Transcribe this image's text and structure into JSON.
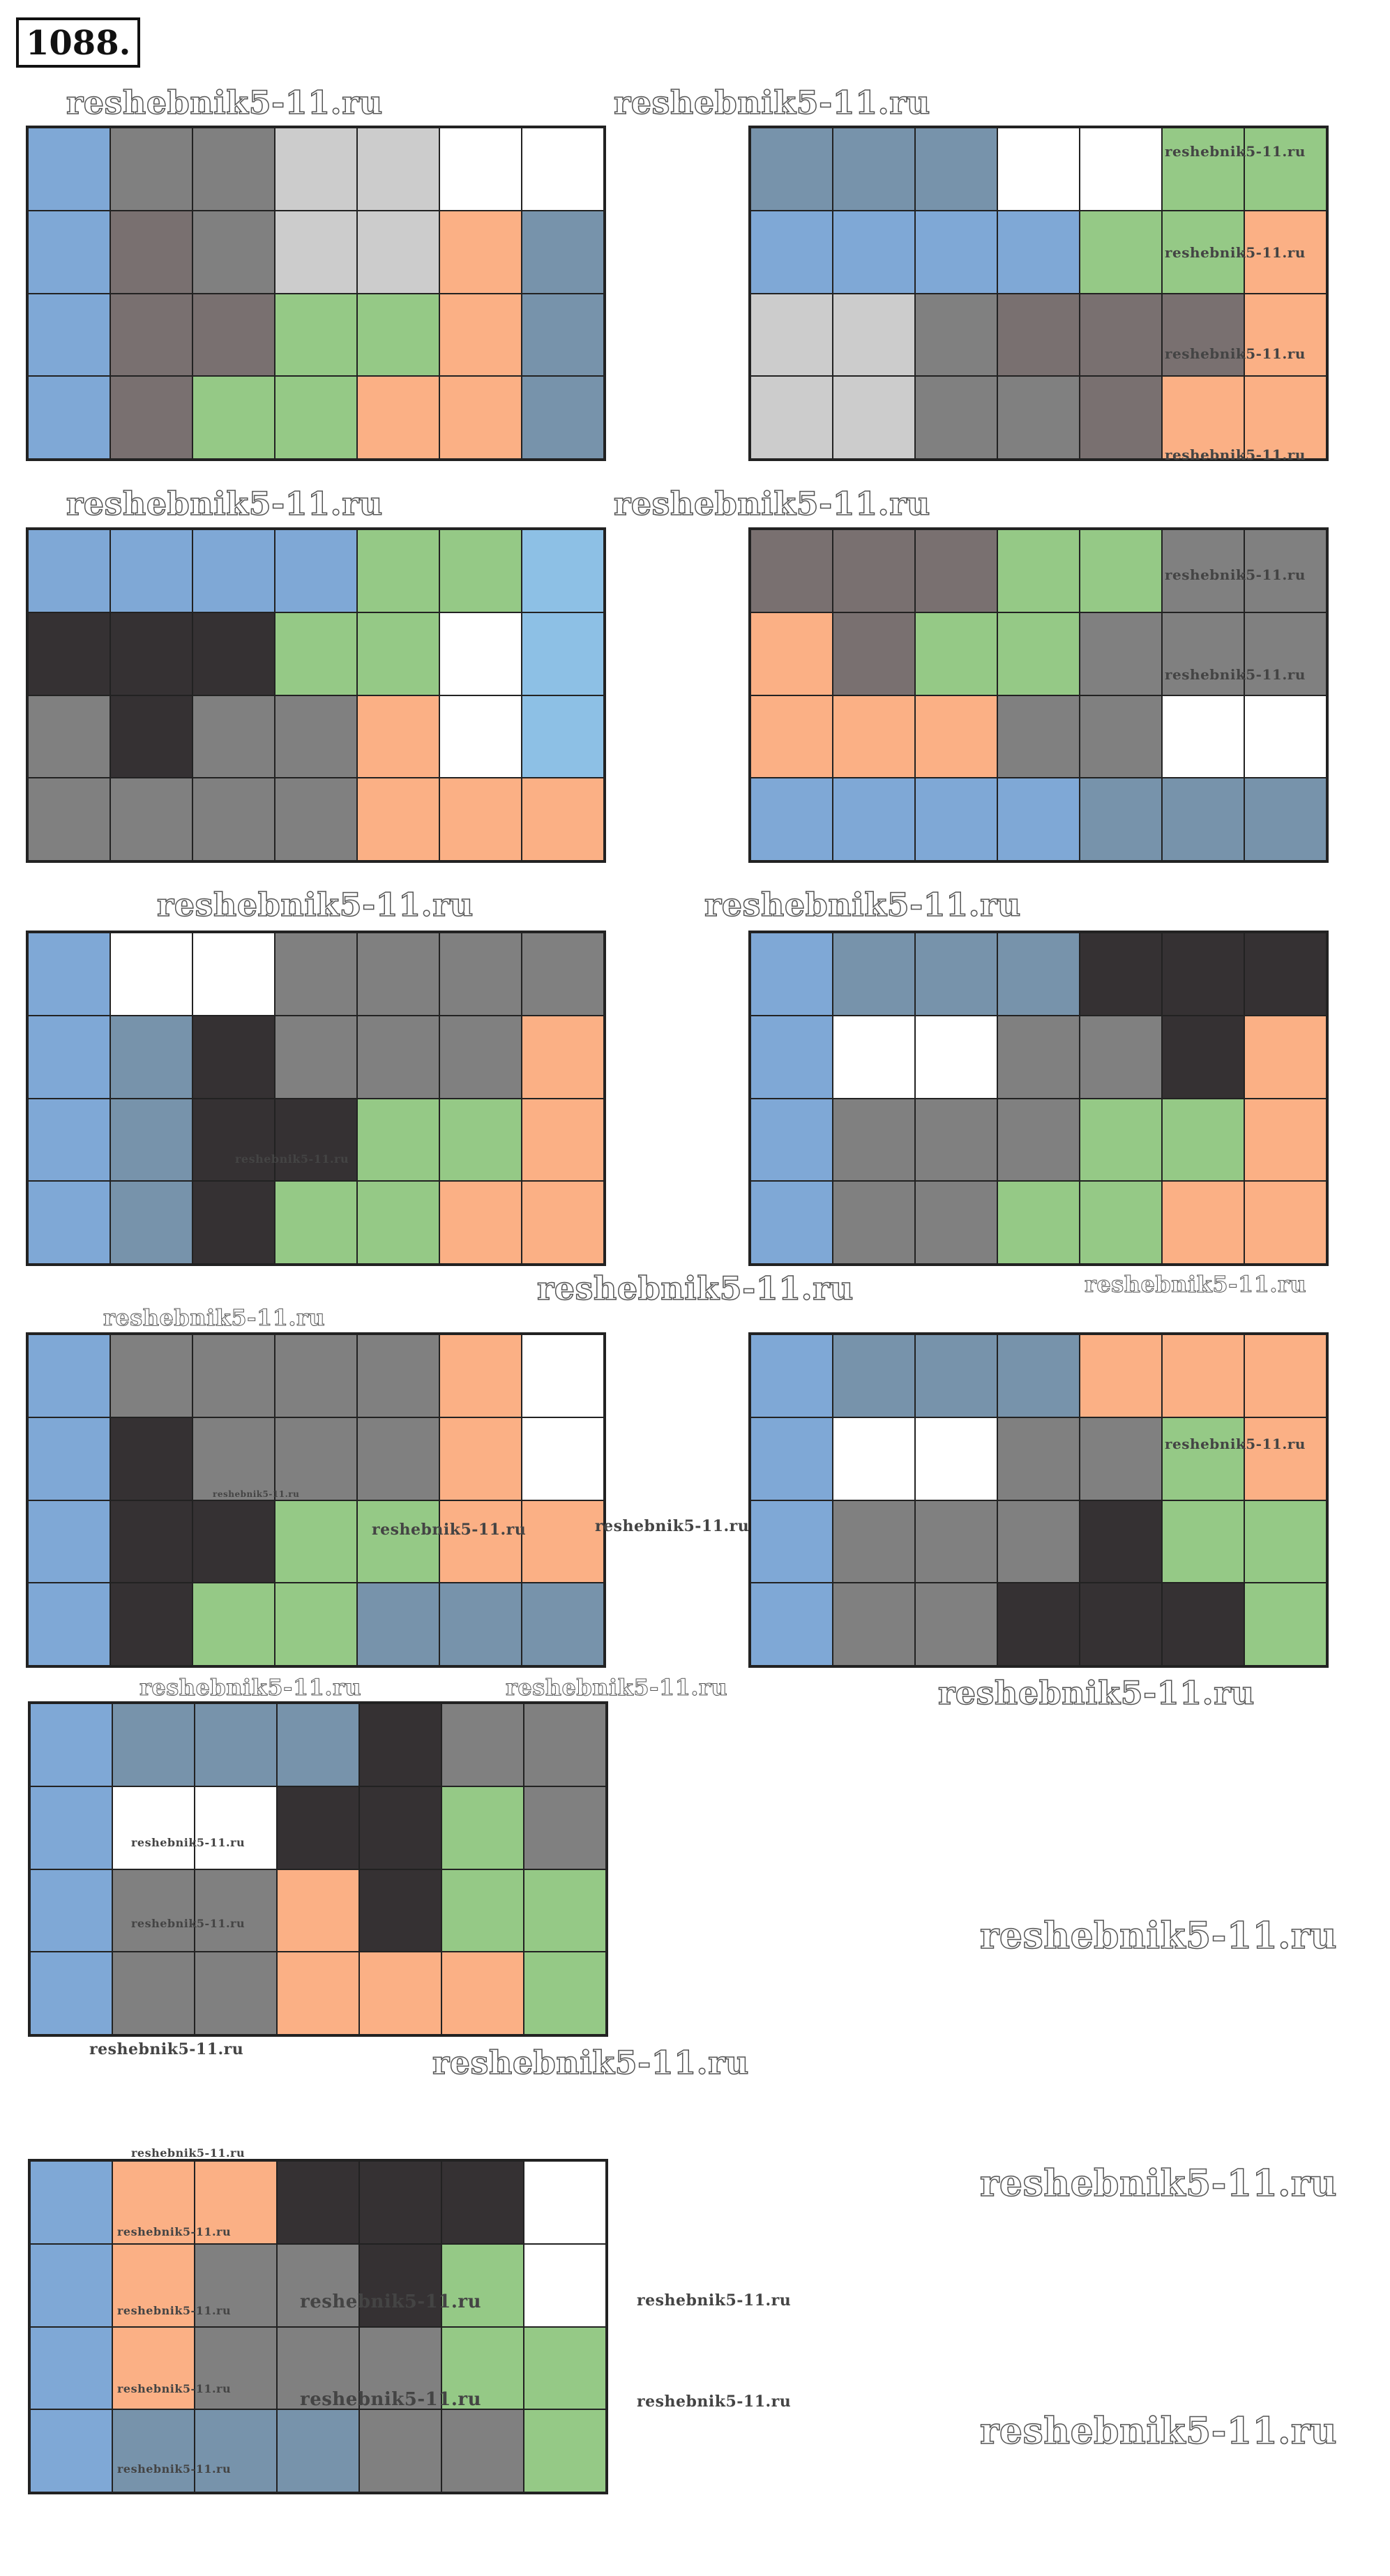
{
  "title": "1088.",
  "colors": {
    "B": "#7fa8d6",
    "S": "#7793ab",
    "G": "#808080",
    "D": "#797070",
    "L": "#cccccc",
    "W": "#ffffff",
    "O": "#fbb085",
    "E": "#95c986",
    "K": "#353133",
    "C": "#8dc0e5"
  },
  "watermark_text": "reshebnik5-11.ru",
  "grids": [
    {
      "rows": [
        "BGGLLWW",
        "BDGLLOS",
        "BDDEEOS",
        "BDEEOOS"
      ]
    },
    {
      "rows": [
        "SSSWWEE",
        "BBBBEEO",
        "LLGDDDO",
        "LLGGDOO"
      ]
    },
    {
      "rows": [
        "BBBBEEC",
        "KKKEEWC",
        "GKGGOWC",
        "GGGGOOO"
      ]
    },
    {
      "rows": [
        "DDDEEGG",
        "ODEEGGG",
        "OOOGGWW",
        "BBBBSSS"
      ]
    },
    {
      "rows": [
        "BWWGGGG",
        "BSKGGGO",
        "BSKKEEO",
        "BSKEEOO"
      ]
    },
    {
      "rows": [
        "BSSSKKK",
        "BWWGGKO",
        "BGGGEEO",
        "BGGEEOO"
      ]
    },
    {
      "rows": [
        "BGGGGOW",
        "BKGGGOW",
        "BKKEEOO",
        "BKEESSS"
      ]
    },
    {
      "rows": [
        "BSSSOOO",
        "BWWGGEO",
        "BGGGKEE",
        "BGGKKKE"
      ]
    },
    {
      "rows": [
        "BSSSKGG",
        "BWWKKEG",
        "BGGOKEE",
        "BGGOOOE"
      ]
    },
    {
      "rows": [
        "BOOKKKW",
        "BOGGKEW",
        "BOGGGEE",
        "BSSSGGE"
      ]
    }
  ]
}
